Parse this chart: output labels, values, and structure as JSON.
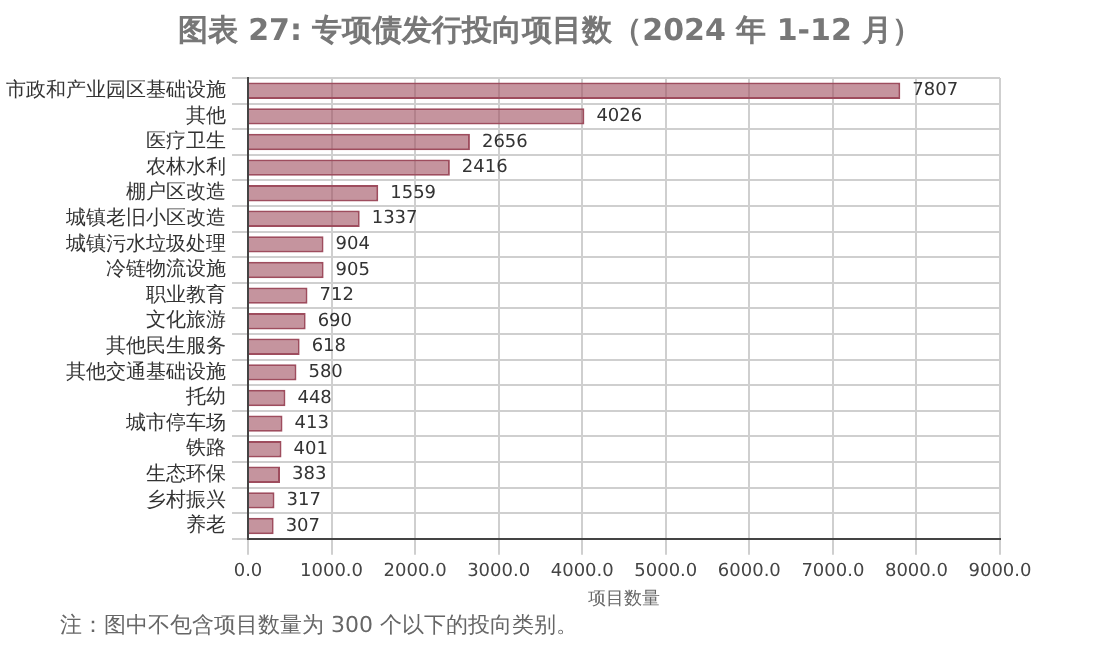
{
  "chart_data": {
    "type": "bar",
    "orientation": "horizontal",
    "title": "图表 27: 专项债发行投向项目数（2024 年 1-12 月）",
    "xlabel": "项目数量",
    "categories": [
      "市政和产业园区基础设施",
      "其他",
      "医疗卫生",
      "农林水利",
      "棚户区改造",
      "城镇老旧小区改造",
      "城镇污水垃圾处理",
      "冷链物流设施",
      "职业教育",
      "文化旅游",
      "其他民生服务",
      "其他交通基础设施",
      "托幼",
      "城市停车场",
      "铁路",
      "生态环保",
      "乡村振兴",
      "养老"
    ],
    "values": [
      7807,
      4026,
      2656,
      2416,
      1559,
      1337,
      904,
      905,
      712,
      690,
      618,
      580,
      448,
      413,
      401,
      383,
      317,
      307
    ],
    "color": "#9e4d5e",
    "data_labels": true,
    "grid": true,
    "legend": false,
    "xlim": [
      0,
      9000
    ],
    "xticks": [
      {
        "value": 0,
        "label": "0.0"
      },
      {
        "value": 1000,
        "label": "1000.0"
      },
      {
        "value": 2000,
        "label": "2000.0"
      },
      {
        "value": 3000,
        "label": "3000.0"
      },
      {
        "value": 4000,
        "label": "4000.0"
      },
      {
        "value": 5000,
        "label": "5000.0"
      },
      {
        "value": 6000,
        "label": "6000.0"
      },
      {
        "value": 7000,
        "label": "7000.0"
      },
      {
        "value": 8000,
        "label": "8000.0"
      },
      {
        "value": 9000,
        "label": "9000.0"
      }
    ],
    "annotations": [
      "注：图中不包含项目数量为 300 个以下的投向类别。"
    ]
  }
}
